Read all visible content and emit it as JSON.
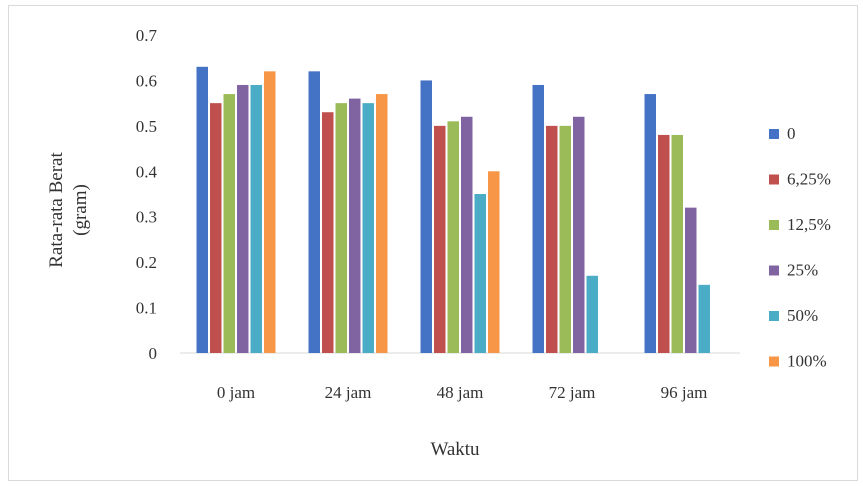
{
  "chart_data": {
    "type": "bar",
    "title": "",
    "xlabel": "Waktu",
    "ylabel_lines": [
      "Rata-rata Berat",
      "(gram)"
    ],
    "ylim": [
      0,
      0.7
    ],
    "yticks": [
      {
        "value": 0,
        "label": "0"
      },
      {
        "value": 0.1,
        "label": "0.1"
      },
      {
        "value": 0.2,
        "label": "0.2"
      },
      {
        "value": 0.3,
        "label": "0.3"
      },
      {
        "value": 0.4,
        "label": "0.4"
      },
      {
        "value": 0.5,
        "label": "0.5"
      },
      {
        "value": 0.6,
        "label": "0.6"
      },
      {
        "value": 0.7,
        "label": "0.7"
      }
    ],
    "grid": false,
    "legend_position": "right",
    "categories": [
      "0 jam",
      "24 jam",
      "48 jam",
      "72 jam",
      "96 jam"
    ],
    "series": [
      {
        "name": "0",
        "color": "#4472c4",
        "values": [
          0.63,
          0.62,
          0.6,
          0.59,
          0.57
        ]
      },
      {
        "name": "6,25%",
        "color": "#c0504d",
        "values": [
          0.55,
          0.53,
          0.5,
          0.5,
          0.48
        ]
      },
      {
        "name": "12,5%",
        "color": "#9bbb59",
        "values": [
          0.57,
          0.55,
          0.51,
          0.5,
          0.48
        ]
      },
      {
        "name": "25%",
        "color": "#8064a2",
        "values": [
          0.59,
          0.56,
          0.52,
          0.52,
          0.32
        ]
      },
      {
        "name": "50%",
        "color": "#4bacc6",
        "values": [
          0.59,
          0.55,
          0.35,
          0.17,
          0.15
        ]
      },
      {
        "name": "100%",
        "color": "#f79646",
        "values": [
          0.62,
          0.57,
          0.4,
          null,
          null
        ]
      }
    ]
  }
}
